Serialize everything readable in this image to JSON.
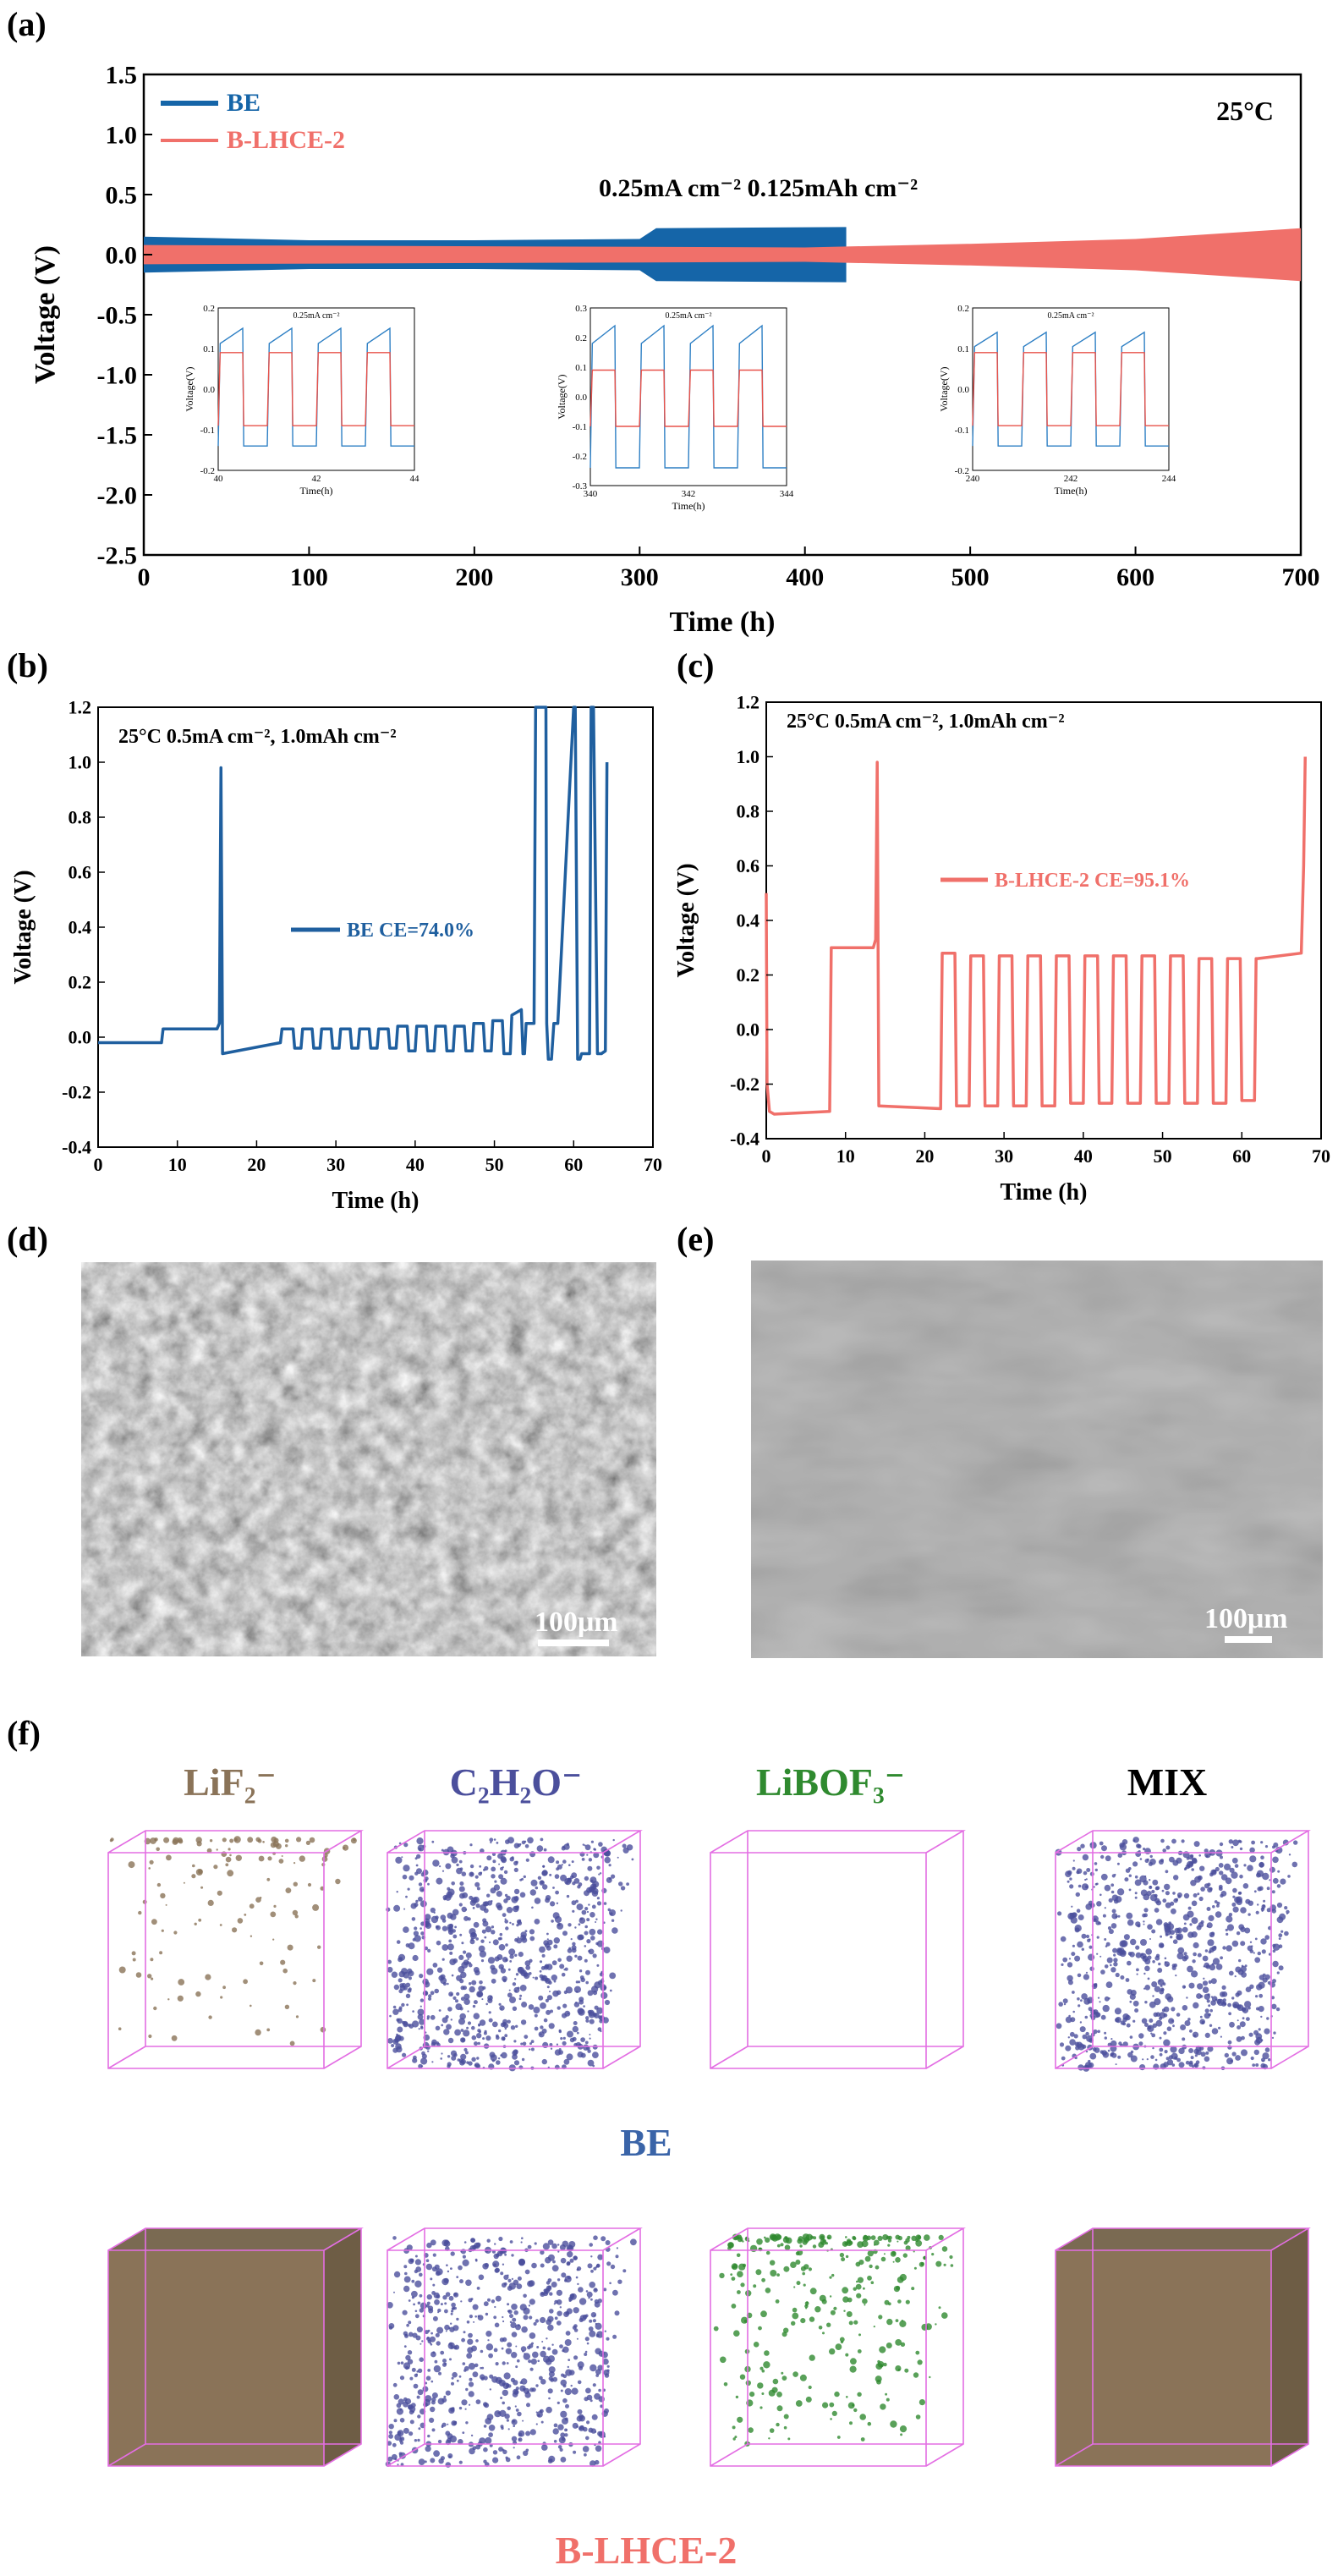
{
  "colors": {
    "be": "#1f5f9f",
    "be_a": "#1565a8",
    "bl": "#f0706a",
    "inset_be": "#2d7fc4",
    "inset_bl": "#e8524a",
    "box": "#e36ee3",
    "sem_d": "#4a4a4a",
    "sem_e": "#5a5a5a"
  },
  "panels": {
    "a": "(a)",
    "b": "(b)",
    "c": "(c)",
    "d": "(d)",
    "e": "(e)",
    "f": "(f)"
  },
  "chart_data": [
    {
      "panel": "a",
      "type": "line",
      "xlabel": "Time (h)",
      "ylabel": "Voltage (V)",
      "xlim": [
        0,
        700
      ],
      "ylim": [
        -2.5,
        1.5
      ],
      "xticks": [
        "0",
        "100",
        "200",
        "300",
        "400",
        "500",
        "600",
        "700"
      ],
      "yticks": [
        "1.5",
        "1.0",
        "0.5",
        "0.0",
        "-0.5",
        "-1.0",
        "-1.5",
        "-2.0",
        "-2.5"
      ],
      "legend": [
        "BE",
        "B-LHCE-2"
      ],
      "annotations": [
        "25°C",
        "0.25mA cm⁻²  0.125mAh cm⁻²"
      ],
      "series": [
        {
          "name": "BE",
          "envelope": [
            [
              0,
              0.15
            ],
            [
              100,
              0.12
            ],
            [
              200,
              0.12
            ],
            [
              300,
              0.13
            ],
            [
              310,
              0.22
            ],
            [
              425,
              0.23
            ]
          ]
        },
        {
          "name": "B-LHCE-2",
          "envelope": [
            [
              0,
              0.08
            ],
            [
              400,
              0.06
            ],
            [
              500,
              0.09
            ],
            [
              600,
              0.13
            ],
            [
              700,
              0.22
            ]
          ]
        }
      ],
      "insets": [
        {
          "title": "0.25mA cm⁻²",
          "xlabel": "Time(h)",
          "ylabel": "Voltage(V)",
          "xlim": [
            40,
            44
          ],
          "ylim": [
            -0.2,
            0.2
          ],
          "xticks": [
            "40",
            "42",
            "44"
          ],
          "yticks": [
            "0.2",
            "0.1",
            "0.0",
            "-0.1",
            "-0.2"
          ],
          "be": [
            0.15,
            -0.14
          ],
          "bl": [
            0.09,
            -0.09
          ]
        },
        {
          "title": "0.25mA cm⁻²",
          "xlabel": "Time(h)",
          "ylabel": "Voltage(V)",
          "xlim": [
            340,
            344
          ],
          "ylim": [
            -0.3,
            0.3
          ],
          "xticks": [
            "340",
            "342",
            "344"
          ],
          "yticks": [
            "0.3",
            "0.2",
            "0.1",
            "0.0",
            "-0.1",
            "-0.2",
            "-0.3"
          ],
          "be": [
            0.24,
            -0.24
          ],
          "bl": [
            0.09,
            -0.1
          ]
        },
        {
          "title": "0.25mA cm⁻²",
          "xlabel": "Time(h)",
          "ylabel": "Voltage(V)",
          "xlim": [
            240,
            244
          ],
          "ylim": [
            -0.2,
            0.2
          ],
          "xticks": [
            "240",
            "242",
            "244"
          ],
          "yticks": [
            "0.2",
            "0.1",
            "0.0",
            "-0.1",
            "-0.2"
          ],
          "be": [
            0.14,
            -0.14
          ],
          "bl": [
            0.09,
            -0.09
          ]
        }
      ]
    },
    {
      "panel": "b",
      "type": "line",
      "xlabel": "Time (h)",
      "ylabel": "Voltage (V)",
      "xlim": [
        0,
        70
      ],
      "ylim": [
        -0.4,
        1.2
      ],
      "xticks": [
        "0",
        "10",
        "20",
        "30",
        "40",
        "50",
        "60",
        "70"
      ],
      "yticks": [
        "1.2",
        "1.0",
        "0.8",
        "0.6",
        "0.4",
        "0.2",
        "0.0",
        "-0.2",
        "-0.4"
      ],
      "annotations": [
        "25°C  0.5mA cm⁻²,  1.0mAh cm⁻²"
      ],
      "legend": [
        "BE  CE=74.0%"
      ],
      "series": [
        {
          "name": "BE",
          "x": [
            0,
            8,
            8.2,
            15,
            15.3,
            15.5,
            15.7,
            23,
            23.2,
            24.6,
            24.8,
            25.6,
            25.8,
            27,
            27.2,
            28,
            28.2,
            29.4,
            29.6,
            30.4,
            30.6,
            31.8,
            32,
            32.8,
            33,
            34.2,
            34.4,
            35.2,
            35.4,
            36.6,
            36.8,
            37.6,
            37.8,
            39,
            39.2,
            40,
            40.2,
            41.4,
            41.6,
            42.4,
            42.6,
            43.8,
            44,
            44.8,
            45,
            46.2,
            46.4,
            47.2,
            47.4,
            48.6,
            48.8,
            49.6,
            49.8,
            51,
            51.2,
            52,
            52.2,
            53.4,
            53.6,
            53.8,
            54,
            55,
            55.2,
            56.5,
            56.6,
            56.8,
            57.2,
            57.5,
            58,
            60,
            60.2,
            60.5,
            60.8,
            61,
            62,
            62.2,
            62.5,
            63,
            63.5,
            64,
            64.2
          ],
          "y": [
            -0.02,
            -0.02,
            0.03,
            0.03,
            0.05,
            0.98,
            -0.06,
            -0.02,
            0.03,
            0.03,
            -0.04,
            -0.04,
            0.03,
            0.03,
            -0.04,
            -0.04,
            0.03,
            0.03,
            -0.04,
            -0.04,
            0.03,
            0.03,
            -0.04,
            -0.04,
            0.03,
            0.03,
            -0.04,
            -0.04,
            0.03,
            0.03,
            -0.04,
            -0.04,
            0.04,
            0.04,
            -0.05,
            -0.05,
            0.04,
            0.04,
            -0.05,
            -0.05,
            0.04,
            0.04,
            -0.05,
            -0.05,
            0.04,
            0.04,
            -0.05,
            -0.05,
            0.05,
            0.05,
            -0.05,
            -0.05,
            0.06,
            0.06,
            -0.06,
            -0.06,
            0.08,
            0.1,
            -0.06,
            -0.06,
            0.05,
            0.05,
            1.2,
            1.2,
            0.05,
            -0.08,
            -0.08,
            0.05,
            0.05,
            1.2,
            1.2,
            -0.08,
            -0.08,
            -0.06,
            -0.06,
            1.2,
            1.2,
            -0.06,
            -0.06,
            -0.05,
            1.0
          ]
        }
      ]
    },
    {
      "panel": "c",
      "type": "line",
      "xlabel": "Time (h)",
      "ylabel": "Voltage (V)",
      "xlim": [
        0,
        70
      ],
      "ylim": [
        -0.4,
        1.2
      ],
      "xticks": [
        "0",
        "10",
        "20",
        "30",
        "40",
        "50",
        "60",
        "70"
      ],
      "yticks": [
        "1.2",
        "1.0",
        "0.8",
        "0.6",
        "0.4",
        "0.2",
        "0.0",
        "-0.2",
        "-0.4"
      ],
      "annotations": [
        "25°C  0.5mA cm⁻²,  1.0mAh cm⁻²"
      ],
      "legend": [
        "B-LHCE-2  CE=95.1%"
      ],
      "series": [
        {
          "name": "B-LHCE-2",
          "x": [
            0,
            0.1,
            0.4,
            1,
            8,
            8.2,
            13.5,
            13.8,
            14,
            14.2,
            22,
            22.2,
            23.8,
            24,
            25.6,
            25.8,
            27.4,
            27.6,
            29.2,
            29.4,
            31,
            31.2,
            32.8,
            33,
            34.6,
            34.8,
            36.4,
            36.6,
            38.2,
            38.4,
            40,
            40.2,
            41.8,
            42,
            43.6,
            43.8,
            45.4,
            45.6,
            47.2,
            47.4,
            49,
            49.2,
            50.8,
            51,
            52.6,
            52.8,
            54.4,
            54.6,
            56.2,
            56.4,
            58,
            58.2,
            59.8,
            60,
            61.6,
            61.8,
            62,
            67.5,
            67.8,
            68
          ],
          "y": [
            0.5,
            -0.2,
            -0.3,
            -0.31,
            -0.3,
            0.3,
            0.3,
            0.33,
            0.98,
            -0.28,
            -0.29,
            0.28,
            0.28,
            -0.28,
            -0.28,
            0.27,
            0.27,
            -0.28,
            -0.28,
            0.27,
            0.27,
            -0.28,
            -0.28,
            0.27,
            0.27,
            -0.28,
            -0.28,
            0.27,
            0.27,
            -0.27,
            -0.27,
            0.27,
            0.27,
            -0.27,
            -0.27,
            0.27,
            0.27,
            -0.27,
            -0.27,
            0.27,
            0.27,
            -0.27,
            -0.27,
            0.27,
            0.27,
            -0.27,
            -0.27,
            0.26,
            0.26,
            -0.27,
            -0.27,
            0.26,
            0.26,
            -0.26,
            -0.26,
            0.26,
            0.26,
            0.28,
            0.6,
            1.0
          ]
        }
      ]
    }
  ],
  "sem": {
    "scale_d": "100μm",
    "scale_e": "100μm"
  },
  "tof": {
    "species": [
      "LiF₂⁻",
      "C₂H₂O⁻",
      "LiBOF₃⁻",
      "MIX"
    ],
    "species_colors": [
      "#8a7358",
      "#4b4f9c",
      "#2f8a2f",
      "#000000"
    ],
    "row_labels": [
      "BE",
      "B-LHCE-2"
    ],
    "row_label_colors": [
      "#3a64a8",
      "#f0706a"
    ]
  }
}
